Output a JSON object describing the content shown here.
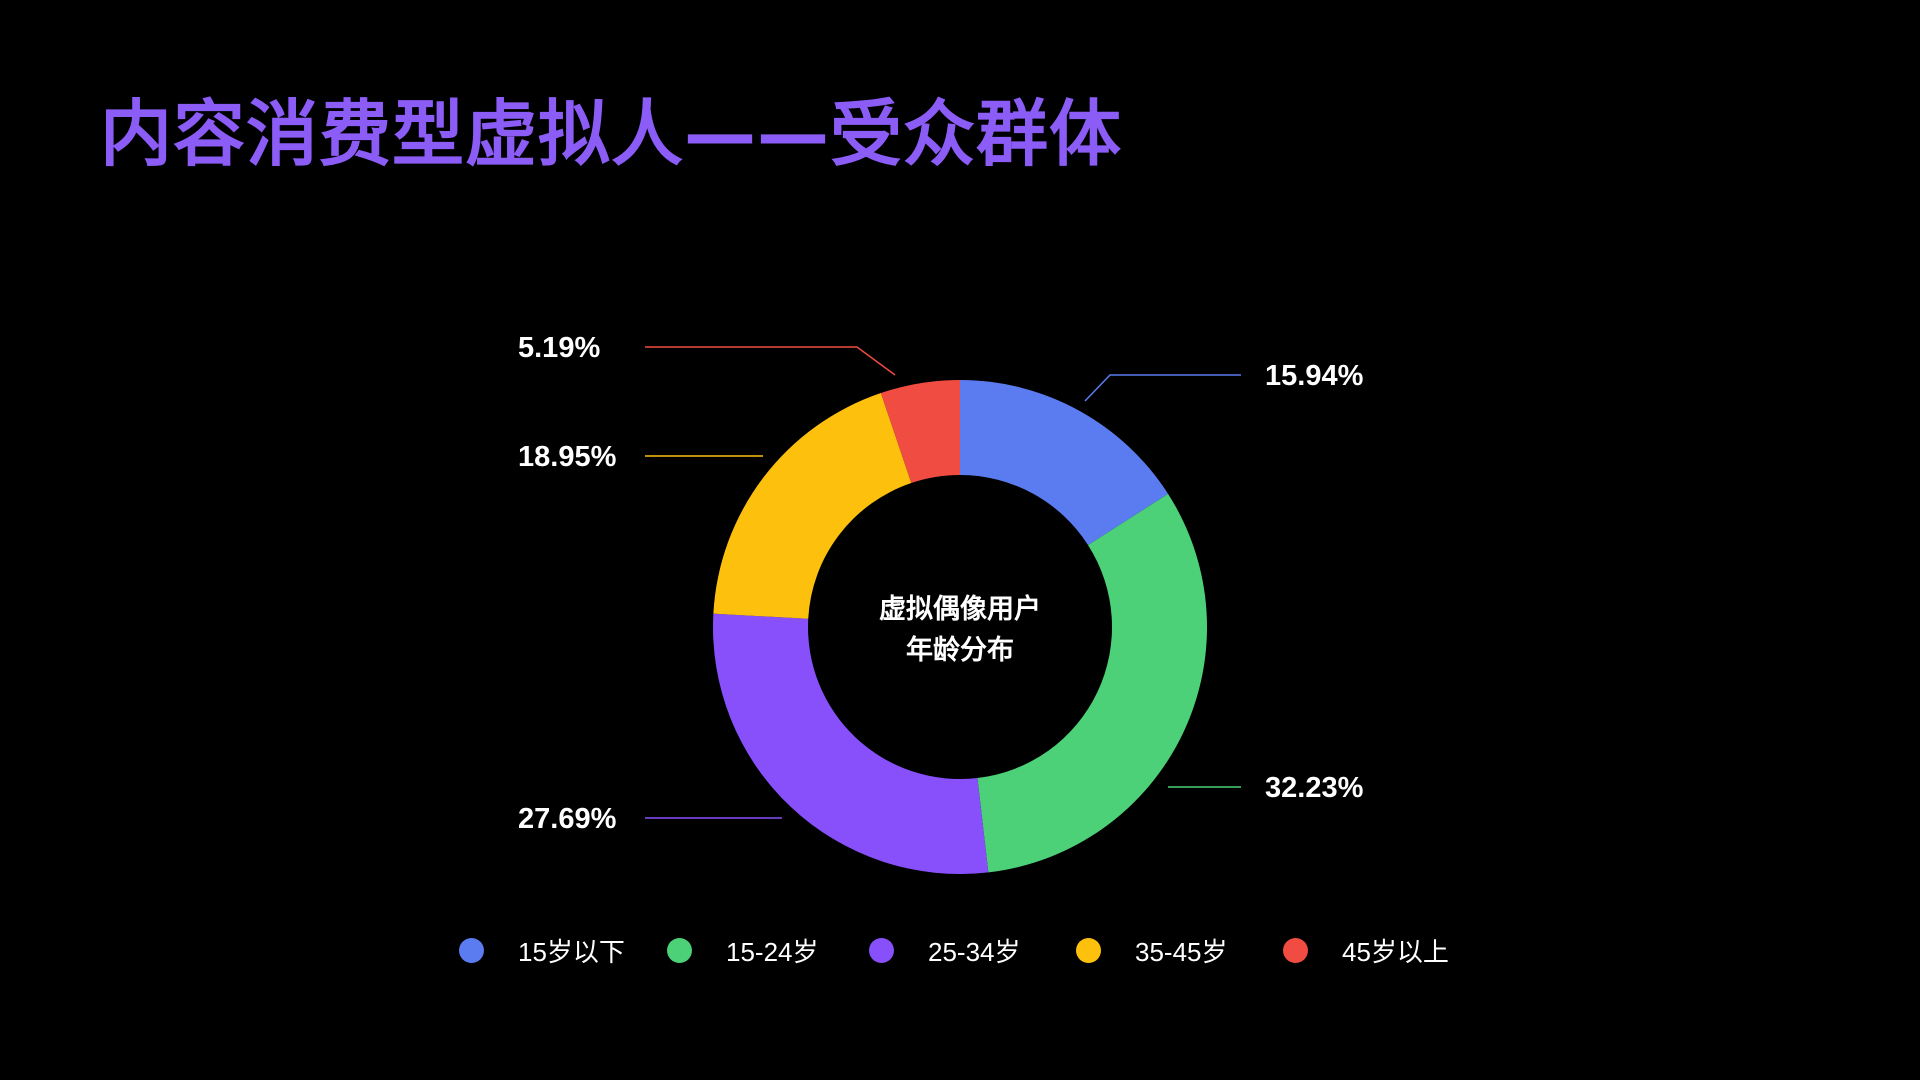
{
  "title": "内容消费型虚拟人——受众群体",
  "chart_data": {
    "type": "pie",
    "title": "",
    "center_label": [
      "虚拟偶像用户",
      "年龄分布"
    ],
    "categories": [
      "15岁以下",
      "15-24岁",
      "25-34岁",
      "35-45岁",
      "45岁以上"
    ],
    "values": [
      15.94,
      32.23,
      27.69,
      18.95,
      5.19
    ],
    "value_labels": [
      "15.94%",
      "32.23%",
      "27.69%",
      "18.95%",
      "5.19%"
    ],
    "colors": [
      "#5b7cf0",
      "#4cd178",
      "#8750fb",
      "#fdc10d",
      "#f04c41"
    ],
    "donut": true,
    "legend_position": "bottom"
  }
}
